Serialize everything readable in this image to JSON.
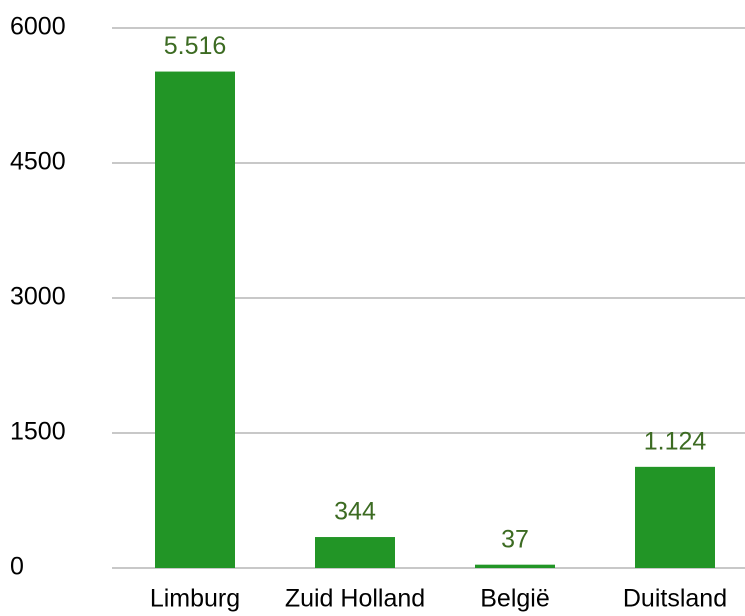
{
  "chart_data": {
    "type": "bar",
    "categories": [
      "Limburg",
      "Zuid Holland",
      "België",
      "Duitsland"
    ],
    "values": [
      5516,
      344,
      37,
      1124
    ],
    "value_labels": [
      "5.516",
      "344",
      "37",
      "1.124"
    ],
    "color": "#229526",
    "ylim": [
      0,
      6000
    ],
    "yticks": [
      0,
      1500,
      3000,
      4500,
      6000
    ],
    "grid": true
  }
}
